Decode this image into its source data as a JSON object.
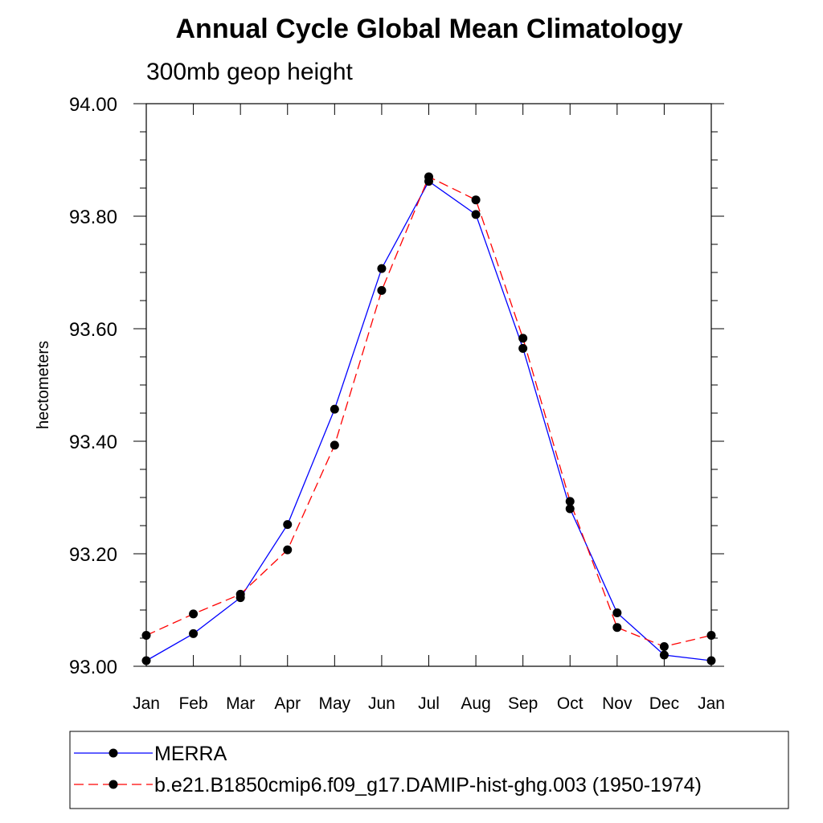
{
  "chart_data": {
    "type": "line",
    "title": "Annual Cycle Global Mean Climatology",
    "subtitle": "300mb geop height",
    "ylabel": "hectometers",
    "xlabel": "",
    "categories": [
      "Jan",
      "Feb",
      "Mar",
      "Apr",
      "May",
      "Jun",
      "Jul",
      "Aug",
      "Sep",
      "Oct",
      "Nov",
      "Dec",
      "Jan"
    ],
    "ylim": [
      93.0,
      94.0
    ],
    "yticks": [
      "93.00",
      "93.20",
      "93.40",
      "93.60",
      "93.80",
      "94.00"
    ],
    "grid": false,
    "legend_position": "bottom",
    "series": [
      {
        "name": "MERRA",
        "color": "#0000ff",
        "style": "solid",
        "marker": "circle",
        "values": [
          93.01,
          93.058,
          93.122,
          93.252,
          93.457,
          93.707,
          93.862,
          93.803,
          93.565,
          93.28,
          93.095,
          93.02,
          93.01
        ]
      },
      {
        "name": "b.e21.B1850cmip6.f09_g17.DAMIP-hist-ghg.003 (1950-1974)",
        "color": "#ff0000",
        "style": "dashed",
        "marker": "circle",
        "values": [
          93.055,
          93.093,
          93.128,
          93.207,
          93.393,
          93.668,
          93.87,
          93.829,
          93.583,
          93.293,
          93.069,
          93.035,
          93.055
        ]
      }
    ]
  }
}
